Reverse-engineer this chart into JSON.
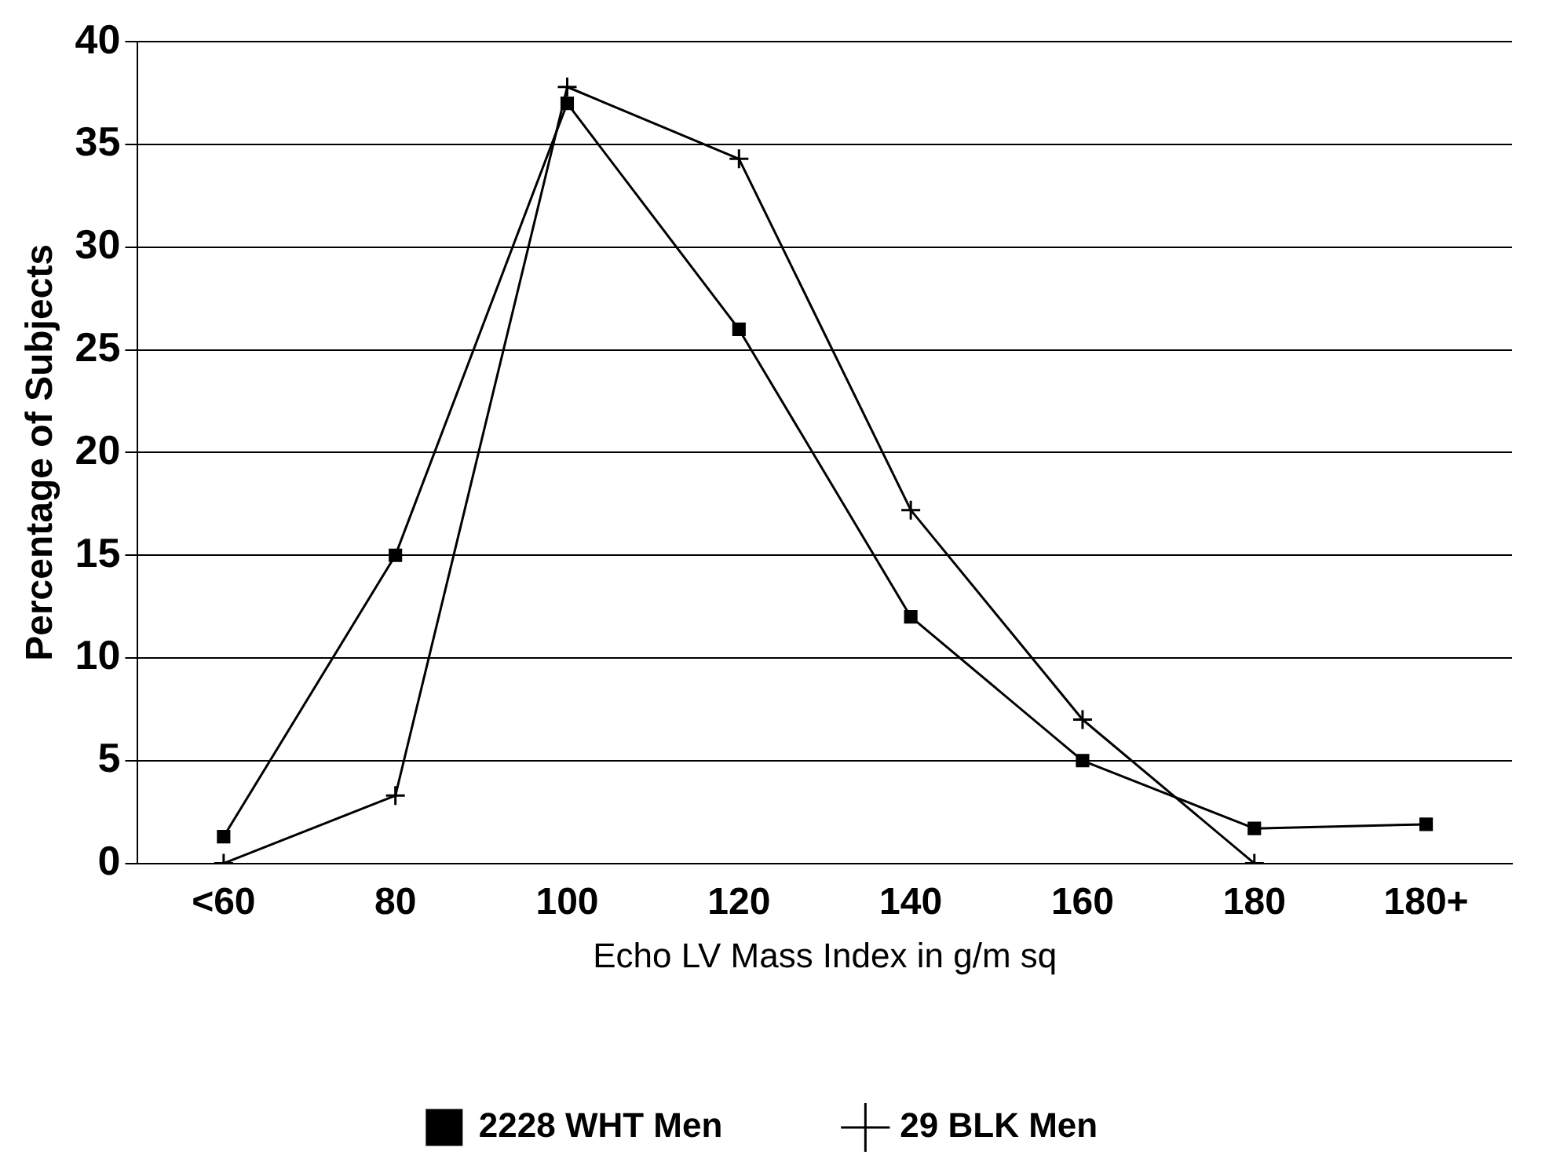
{
  "chart_data": {
    "type": "line",
    "xlabel": "Echo LV Mass Index in g/m sq",
    "ylabel": "Percentage of Subjects",
    "categories": [
      "<60",
      "80",
      "100",
      "120",
      "140",
      "160",
      "180",
      "180+"
    ],
    "series": [
      {
        "name": "2228 WHT Men",
        "color": "#000000",
        "marker": "square",
        "values": [
          1.3,
          15,
          37,
          26,
          12,
          5,
          1.7,
          1.9
        ]
      },
      {
        "name": "29 BLK Men",
        "color": "#000000",
        "marker": "cross",
        "values": [
          0,
          3.3,
          37.8,
          34.3,
          17.2,
          7,
          0,
          null
        ]
      }
    ],
    "ylim": [
      0,
      40
    ],
    "yticks": [
      0,
      5,
      10,
      15,
      20,
      25,
      30,
      35,
      40
    ],
    "grid": "y",
    "legend": "bottom",
    "line_style": "solid"
  }
}
